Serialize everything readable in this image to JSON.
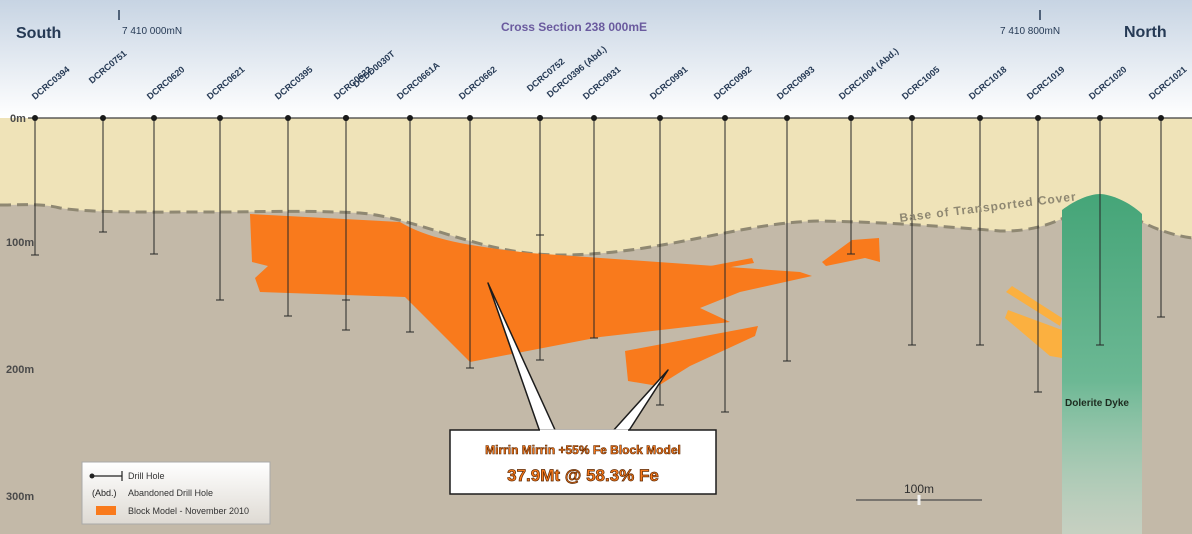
{
  "header": {
    "title": "Cross Section 238 000mE",
    "left_direction": "South",
    "right_direction": "North",
    "left_coordinate": "7 410 000mN",
    "right_coordinate": "7 410 800mN"
  },
  "depth_labels": [
    "0m",
    "100m",
    "200m",
    "300m"
  ],
  "drill_holes": [
    "DCRC0394",
    "DCRC0751",
    "DCRC0620",
    "DCRC0621",
    "DCRC0395",
    "DCRC0622",
    "DCDD0030T",
    "DCRC0661A",
    "DCRC0662",
    "DCRC0752",
    "DCRC0396 (Abd.)",
    "DCRC0931",
    "DCRC0991",
    "DCRC0992",
    "DCRC0993",
    "DCRC1004 (Abd.)",
    "DCRC1005",
    "DCRC1018",
    "DCRC1019",
    "DCRC1020",
    "DCRC1021"
  ],
  "annotations": {
    "transported_cover": "Base of Transported Cover",
    "dyke": "Dolerite Dyke",
    "callout_title": "Mirrin Mirrin +55% Fe Block Model",
    "callout_value": "37.9Mt @ 58.3% Fe",
    "scale_bar": "100m"
  },
  "legend": {
    "items": [
      {
        "symbol": "",
        "label": "Drill Hole"
      },
      {
        "symbol": "(Abd.)",
        "label": "Abandoned Drill Hole"
      },
      {
        "symbol": "",
        "label": "Block Model - November 2010"
      }
    ]
  },
  "colors": {
    "cover": "#efe3b8",
    "basement": "#c3b9a8",
    "ore": "#f97a1c",
    "ore_light": "#fbb040",
    "dyke": "#4fae80",
    "title": "#6a5a9e",
    "header_dark": "#263a55"
  }
}
